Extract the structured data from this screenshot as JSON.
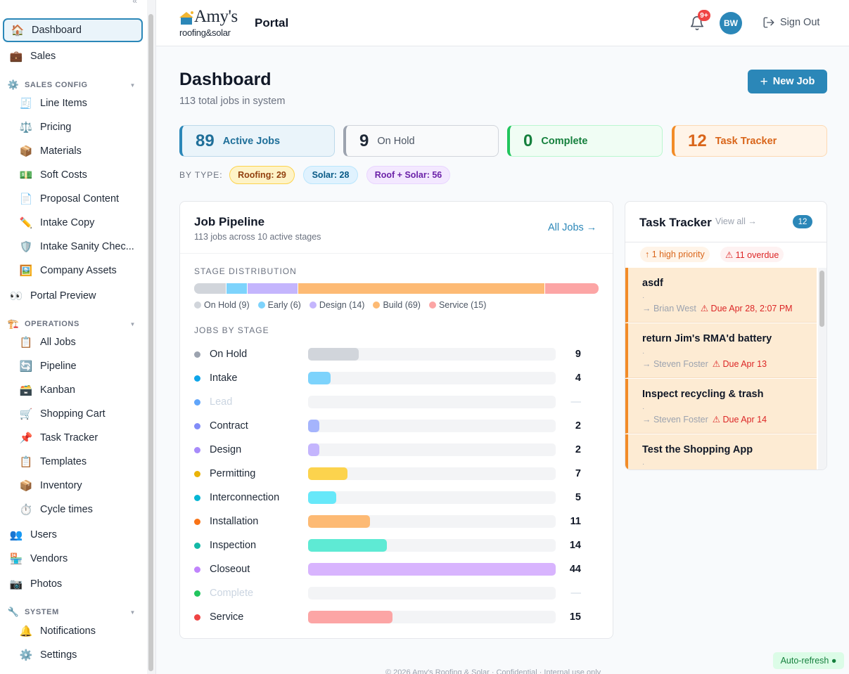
{
  "sidebar": {
    "collapse_glyph": "«",
    "items": [
      {
        "id": "dashboard",
        "label": "Dashboard",
        "icon": "house-icon",
        "glyph": "🏠",
        "kind": "top",
        "active": true
      },
      {
        "id": "sales",
        "label": "Sales",
        "icon": "briefcase-icon",
        "glyph": "💼",
        "kind": "top"
      },
      {
        "id": "sales-config",
        "label": "SALES CONFIG",
        "icon": "gear-icon",
        "glyph": "⚙️",
        "kind": "group"
      },
      {
        "id": "line-items",
        "label": "Line Items",
        "icon": "receipt-icon",
        "glyph": "🧾",
        "kind": "sub"
      },
      {
        "id": "pricing",
        "label": "Pricing",
        "icon": "scales-icon",
        "glyph": "⚖️",
        "kind": "sub"
      },
      {
        "id": "materials",
        "label": "Materials",
        "icon": "package-icon",
        "glyph": "📦",
        "kind": "sub"
      },
      {
        "id": "soft-costs",
        "label": "Soft Costs",
        "icon": "money-icon",
        "glyph": "💵",
        "kind": "sub"
      },
      {
        "id": "proposal-content",
        "label": "Proposal Content",
        "icon": "document-icon",
        "glyph": "📄",
        "kind": "sub"
      },
      {
        "id": "intake-copy",
        "label": "Intake Copy",
        "icon": "pencil-icon",
        "glyph": "✏️",
        "kind": "sub"
      },
      {
        "id": "intake-sanity",
        "label": "Intake Sanity Chec...",
        "icon": "shield-icon",
        "glyph": "🛡️",
        "kind": "sub"
      },
      {
        "id": "company-assets",
        "label": "Company Assets",
        "icon": "picture-icon",
        "glyph": "🖼️",
        "kind": "sub"
      },
      {
        "id": "portal-preview",
        "label": "Portal Preview",
        "icon": "eyes-icon",
        "glyph": "👀",
        "kind": "top"
      },
      {
        "id": "operations",
        "label": "OPERATIONS",
        "icon": "construction-icon",
        "glyph": "🏗️",
        "kind": "group"
      },
      {
        "id": "all-jobs",
        "label": "All Jobs",
        "icon": "clipboard-icon",
        "glyph": "📋",
        "kind": "sub"
      },
      {
        "id": "pipeline",
        "label": "Pipeline",
        "icon": "cycle-icon",
        "glyph": "🔄",
        "kind": "sub"
      },
      {
        "id": "kanban",
        "label": "Kanban",
        "icon": "card-index-icon",
        "glyph": "🗃️",
        "kind": "sub"
      },
      {
        "id": "shopping-cart",
        "label": "Shopping Cart",
        "icon": "cart-icon",
        "glyph": "🛒",
        "kind": "sub"
      },
      {
        "id": "task-tracker",
        "label": "Task Tracker",
        "icon": "pin-icon",
        "glyph": "📌",
        "kind": "sub"
      },
      {
        "id": "templates",
        "label": "Templates",
        "icon": "clipboard-icon",
        "glyph": "📋",
        "kind": "sub"
      },
      {
        "id": "inventory",
        "label": "Inventory",
        "icon": "package-icon",
        "glyph": "📦",
        "kind": "sub"
      },
      {
        "id": "cycle-times",
        "label": "Cycle times",
        "icon": "stopwatch-icon",
        "glyph": "⏱️",
        "kind": "sub"
      },
      {
        "id": "users",
        "label": "Users",
        "icon": "users-icon",
        "glyph": "👥",
        "kind": "top"
      },
      {
        "id": "vendors",
        "label": "Vendors",
        "icon": "store-icon",
        "glyph": "🏪",
        "kind": "top"
      },
      {
        "id": "photos",
        "label": "Photos",
        "icon": "camera-icon",
        "glyph": "📷",
        "kind": "top"
      },
      {
        "id": "system",
        "label": "SYSTEM",
        "icon": "wrench-icon",
        "glyph": "🔧",
        "kind": "group"
      },
      {
        "id": "notifications",
        "label": "Notifications",
        "icon": "bell-icon",
        "glyph": "🔔",
        "kind": "sub"
      },
      {
        "id": "settings",
        "label": "Settings",
        "icon": "gear-icon",
        "glyph": "⚙️",
        "kind": "sub"
      }
    ]
  },
  "header": {
    "brand_top": "Amy's",
    "brand_bottom": "roofing&solar",
    "portal_label": "Portal",
    "notifications_badge": "9+",
    "avatar_initials": "BW",
    "signout_label": "Sign Out"
  },
  "main": {
    "title": "Dashboard",
    "subtitle": "113 total jobs in system",
    "new_job_label": "New Job",
    "stats": [
      {
        "id": "active",
        "value": "89",
        "label": "Active Jobs",
        "color": "#2b87b8",
        "bg": "#eaf4fa",
        "border": "#bcd9ea",
        "text": "#1f6f99"
      },
      {
        "id": "on-hold",
        "value": "9",
        "label": "On Hold",
        "color": "#9ca3af",
        "bg": "#f9fafb",
        "border": "#d1d5db",
        "text": "#4b5563"
      },
      {
        "id": "complete",
        "value": "0",
        "label": "Complete",
        "color": "#22c55e",
        "bg": "#f0fdf4",
        "border": "#bbf7d0",
        "text": "#15803d"
      },
      {
        "id": "task-tracker",
        "value": "12",
        "label": "Task Tracker",
        "color": "#f28c28",
        "bg": "#fff4e8",
        "border": "#fcd9b4",
        "text": "#d9651a"
      }
    ],
    "bytype_label": "BY TYPE:",
    "types": [
      {
        "label": "Roofing: 29",
        "bg": "#fef3c7",
        "border": "#fcd34d",
        "text": "#92400e"
      },
      {
        "label": "Solar: 28",
        "bg": "#e0f2fe",
        "border": "#bae6fd",
        "text": "#075985"
      },
      {
        "label": "Roof + Solar: 56",
        "bg": "#f3e8ff",
        "border": "#e9d5ff",
        "text": "#6b21a8"
      }
    ]
  },
  "pipeline": {
    "title": "Job Pipeline",
    "subtitle": "113 jobs across 10 active stages",
    "all_jobs_link": "All Jobs →",
    "distribution_label": "STAGE DISTRIBUTION",
    "distribution": [
      {
        "label": "On Hold (9)",
        "value": 9,
        "color": "#d1d5db"
      },
      {
        "label": "Early (6)",
        "value": 6,
        "color": "#7dd3fc"
      },
      {
        "label": "Design (14)",
        "value": 14,
        "color": "#c4b5fd"
      },
      {
        "label": "Build (69)",
        "value": 69,
        "color": "#fdba74"
      },
      {
        "label": "Service (15)",
        "value": 15,
        "color": "#fca5a5"
      }
    ],
    "stages_label": "JOBS BY STAGE",
    "stages_max": 44,
    "stages": [
      {
        "name": "On Hold",
        "count": "9",
        "value": 9,
        "dot": "#9ca3af",
        "fill": "#d1d5db"
      },
      {
        "name": "Intake",
        "count": "4",
        "value": 4,
        "dot": "#0ea5e9",
        "fill": "#7dd3fc"
      },
      {
        "name": "Lead",
        "count": "—",
        "value": 0,
        "dot": "#60a5fa",
        "fill": "#93c5fd",
        "empty": true
      },
      {
        "name": "Contract",
        "count": "2",
        "value": 2,
        "dot": "#818cf8",
        "fill": "#a5b4fc"
      },
      {
        "name": "Design",
        "count": "2",
        "value": 2,
        "dot": "#a78bfa",
        "fill": "#c4b5fd"
      },
      {
        "name": "Permitting",
        "count": "7",
        "value": 7,
        "dot": "#eab308",
        "fill": "#fcd34d"
      },
      {
        "name": "Interconnection",
        "count": "5",
        "value": 5,
        "dot": "#06b6d4",
        "fill": "#67e8f9"
      },
      {
        "name": "Installation",
        "count": "11",
        "value": 11,
        "dot": "#f97316",
        "fill": "#fdba74"
      },
      {
        "name": "Inspection",
        "count": "14",
        "value": 14,
        "dot": "#14b8a6",
        "fill": "#5eead4"
      },
      {
        "name": "Closeout",
        "count": "44",
        "value": 44,
        "dot": "#c084fc",
        "fill": "#d8b4fe"
      },
      {
        "name": "Complete",
        "count": "—",
        "value": 0,
        "dot": "#22c55e",
        "fill": "#86efac",
        "empty": true
      },
      {
        "name": "Service",
        "count": "15",
        "value": 15,
        "dot": "#ef4444",
        "fill": "#fca5a5"
      }
    ]
  },
  "tasks": {
    "title": "Task Tracker",
    "view_all": "View all →",
    "count": "12",
    "high_priority": "↑ 1 high priority",
    "overdue": "⚠ 11 overdue",
    "items": [
      {
        "title": "asdf",
        "dot": "·",
        "assignee": "→ Brian West",
        "due": "⚠ Due Apr 28, 2:07 PM"
      },
      {
        "title": "return Jim's RMA'd battery",
        "dot": "·",
        "assignee": "→ Steven Foster",
        "due": "⚠ Due Apr 13"
      },
      {
        "title": "Inspect recycling & trash",
        "dot": "·",
        "assignee": "→ Steven Foster",
        "due": "⚠ Due Apr 14"
      },
      {
        "title": "Test the Shopping App",
        "dot": "·",
        "assignee": "",
        "due": ""
      }
    ]
  },
  "footer": {
    "text": "© 2026 Amy's Roofing & Solar · Confidential · Internal use only",
    "auto_refresh": "Auto-refresh ●"
  }
}
